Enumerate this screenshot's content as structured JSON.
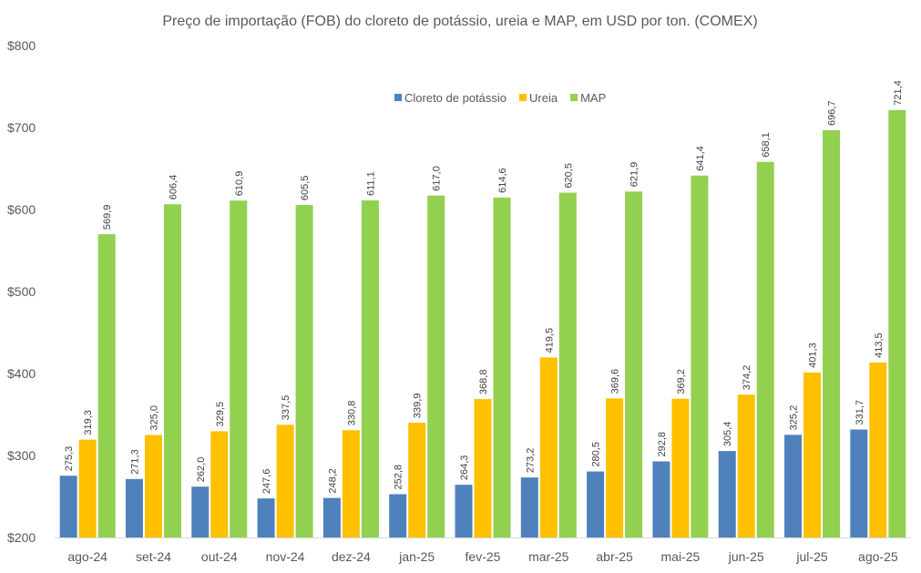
{
  "chart_data": {
    "type": "bar",
    "title": "Preço de importação (FOB) do cloreto de potássio, ureia e MAP, em USD por ton. (COMEX)",
    "xlabel": "",
    "ylabel": "",
    "ylim": [
      200,
      800
    ],
    "yticks": [
      200,
      300,
      400,
      500,
      600,
      700,
      800
    ],
    "ytick_labels": [
      "$200",
      "$300",
      "$400",
      "$500",
      "$600",
      "$700",
      "$800"
    ],
    "grid": false,
    "legend_position": "top-center",
    "categories": [
      "ago-24",
      "set-24",
      "out-24",
      "nov-24",
      "dez-24",
      "jan-25",
      "fev-25",
      "mar-25",
      "abr-25",
      "mai-25",
      "jun-25",
      "jul-25",
      "ago-25"
    ],
    "series": [
      {
        "name": "Cloreto de potássio",
        "color": "#4f81bd",
        "values": [
          275.3,
          271.3,
          262.0,
          247.6,
          248.2,
          252.8,
          264.3,
          273.2,
          280.5,
          292.8,
          305.4,
          325.2,
          331.7
        ],
        "labels": [
          "275,3",
          "271,3",
          "262,0",
          "247,6",
          "248,2",
          "252,8",
          "264,3",
          "273,2",
          "280,5",
          "292,8",
          "305,4",
          "325,2",
          "331,7"
        ]
      },
      {
        "name": "Ureia",
        "color": "#ffc000",
        "values": [
          319.3,
          325.0,
          329.5,
          337.5,
          330.8,
          339.9,
          368.8,
          419.5,
          369.6,
          369.2,
          374.2,
          401.3,
          413.5
        ],
        "labels": [
          "319,3",
          "325,0",
          "329,5",
          "337,5",
          "330,8",
          "339,9",
          "368,8",
          "419,5",
          "369,6",
          "369,2",
          "374,2",
          "401,3",
          "413,5"
        ]
      },
      {
        "name": "MAP",
        "color": "#92d050",
        "values": [
          569.9,
          606.4,
          610.9,
          605.5,
          611.1,
          617.0,
          614.6,
          620.5,
          621.9,
          641.4,
          658.1,
          696.7,
          721.4
        ],
        "labels": [
          "569,9",
          "606,4",
          "610,9",
          "605,5",
          "611,1",
          "617,0",
          "614,6",
          "620,5",
          "621,9",
          "641,4",
          "658,1",
          "696,7",
          "721,4"
        ]
      }
    ]
  }
}
